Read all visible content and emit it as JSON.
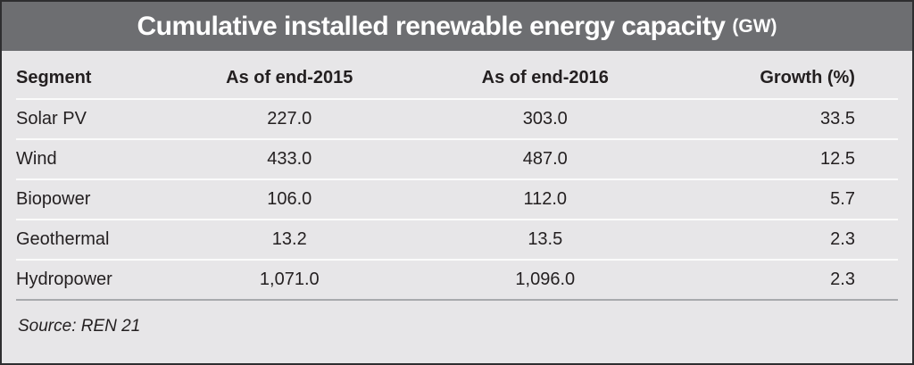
{
  "title": {
    "text": "Cumulative installed renewable energy capacity",
    "unit": "(GW)"
  },
  "table": {
    "columns": {
      "segment": "Segment",
      "end2015": "As of end-2015",
      "end2016": "As of end-2016",
      "growth": "Growth (%)"
    },
    "rows": [
      {
        "segment": "Solar PV",
        "end2015": "227.0",
        "end2016": "303.0",
        "growth": "33.5"
      },
      {
        "segment": "Wind",
        "end2015": "433.0",
        "end2016": "487.0",
        "growth": "12.5"
      },
      {
        "segment": "Biopower",
        "end2015": "106.0",
        "end2016": "112.0",
        "growth": "5.7"
      },
      {
        "segment": "Geothermal",
        "end2015": "13.2",
        "end2016": "13.5",
        "growth": "2.3"
      },
      {
        "segment": "Hydropower",
        "end2015": "1,071.0",
        "end2016": "1,096.0",
        "growth": "2.3"
      }
    ]
  },
  "source": "Source: REN 21",
  "colors": {
    "title_band": "#6d6e71",
    "title_text": "#ffffff",
    "table_background": "#e7e6e8",
    "body_text": "#231f20",
    "row_separator": "#fbfbfb",
    "source_rule": "#a8aaad",
    "outer_border": "#2e2e30"
  },
  "chart_data": {
    "type": "table",
    "title": "Cumulative installed renewable energy capacity (GW)",
    "columns": [
      "Segment",
      "As of end-2015",
      "As of end-2016",
      "Growth (%)"
    ],
    "rows": [
      [
        "Solar PV",
        227.0,
        303.0,
        33.5
      ],
      [
        "Wind",
        433.0,
        487.0,
        12.5
      ],
      [
        "Biopower",
        106.0,
        112.0,
        5.7
      ],
      [
        "Geothermal",
        13.2,
        13.5,
        2.3
      ],
      [
        "Hydropower",
        1071.0,
        1096.0,
        2.3
      ]
    ],
    "source": "REN 21"
  }
}
